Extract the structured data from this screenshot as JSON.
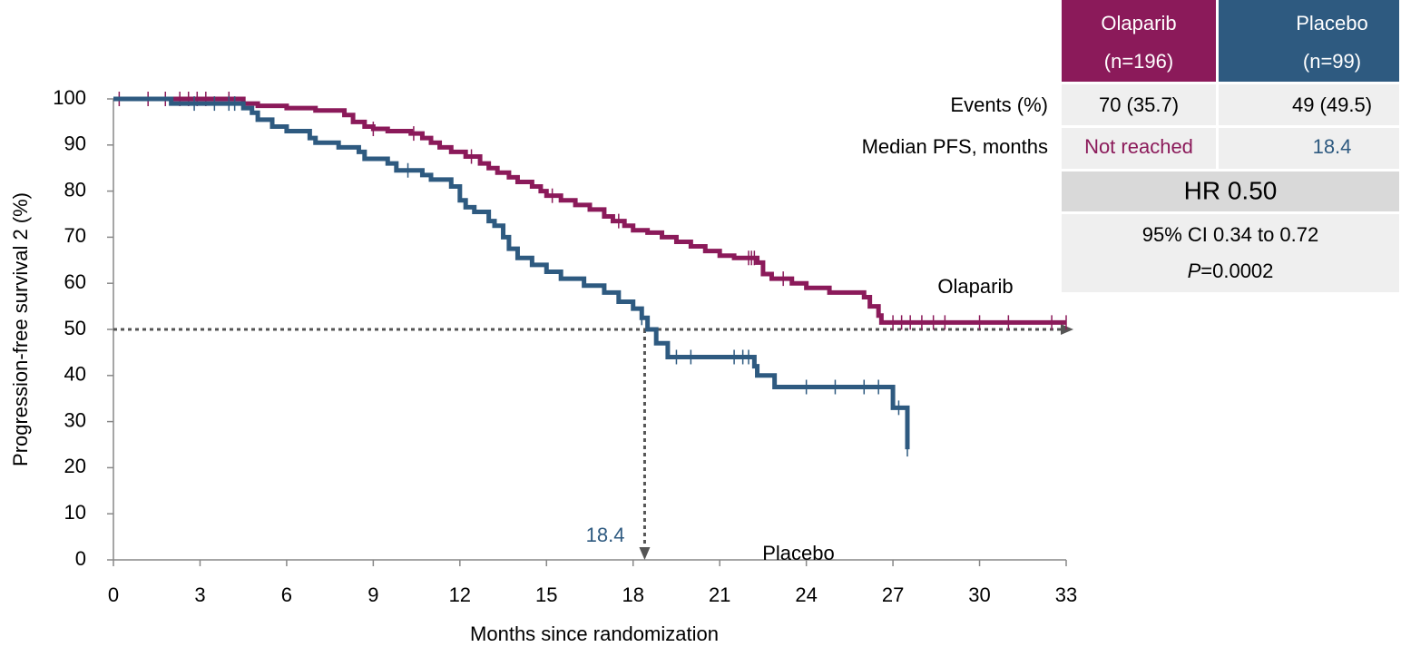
{
  "chart_data": {
    "type": "step",
    "xlabel": "Months since randomization",
    "ylabel": "Progression-free survival 2 (%)",
    "xlim": [
      0,
      33
    ],
    "xticks": [
      0,
      3,
      6,
      9,
      12,
      15,
      18,
      21,
      24,
      27,
      30,
      33
    ],
    "ylim": [
      0,
      100
    ],
    "yticks": [
      0,
      10,
      20,
      30,
      40,
      50,
      60,
      70,
      80,
      90,
      100
    ],
    "median_survival": 50,
    "median_time": 18.4,
    "series": [
      {
        "name": "Olaparib",
        "color": "#8b1a5a",
        "x": [
          0,
          4.5,
          5,
          6,
          7,
          8,
          8.3,
          8.7,
          9.0,
          9.5,
          10.3,
          10.7,
          11,
          11.3,
          11.7,
          12.2,
          12.7,
          13,
          13.3,
          13.7,
          14,
          14.5,
          14.8,
          15,
          15.5,
          16,
          16.5,
          17,
          17.3,
          17.7,
          18,
          18.5,
          19,
          19.5,
          20,
          20.5,
          21,
          21.5,
          22.3,
          22.5,
          22.8,
          23.5,
          24,
          24.8,
          26,
          26.2,
          26.5,
          26.6,
          33
        ],
        "values": [
          100,
          99,
          98.5,
          98,
          97.5,
          96.5,
          95,
          94,
          93.5,
          93,
          92.5,
          91.5,
          90.5,
          89.5,
          88.5,
          87.5,
          86,
          85,
          84,
          83,
          82,
          81,
          80,
          79,
          78,
          77,
          76,
          74.5,
          73.5,
          72.5,
          71.5,
          71,
          70,
          69,
          68,
          67,
          66,
          65.5,
          64.5,
          62,
          61,
          60,
          59,
          58,
          57,
          55,
          53,
          51.5,
          51.5
        ],
        "censored": [
          0.2,
          1.2,
          1.8,
          2.3,
          2.6,
          2.9,
          3.2,
          4.0,
          9.0,
          10.4,
          12.4,
          15.2,
          17.5,
          22.0,
          22.1,
          22.2,
          23.2,
          27.0,
          27.3,
          27.6,
          28.0,
          28.4,
          28.8,
          30.0,
          31.0,
          32.5,
          33.0
        ]
      },
      {
        "name": "Placebo",
        "color": "#2e5a80",
        "x": [
          0,
          2,
          4.5,
          4.8,
          5,
          5.5,
          6,
          6.8,
          7,
          7.8,
          8.5,
          8.7,
          9.5,
          9.8,
          10.7,
          11,
          11.7,
          12,
          12.2,
          12.5,
          13,
          13.2,
          13.5,
          13.7,
          14,
          14.5,
          15,
          15.5,
          16.3,
          17,
          17.5,
          18,
          18.3,
          18.5,
          18.8,
          19.2,
          22.2,
          22.3,
          22.9,
          27,
          27.5
        ],
        "values": [
          100,
          99,
          98,
          97,
          95.5,
          94,
          93,
          91.5,
          90.5,
          89.5,
          88.5,
          87,
          86,
          84.5,
          83.5,
          82.5,
          81,
          78,
          76.5,
          75.5,
          73.5,
          72.5,
          70,
          67.5,
          65.5,
          64,
          62.5,
          61,
          59.5,
          58,
          56,
          54.5,
          52.5,
          50,
          47,
          44,
          42,
          40,
          37.5,
          33,
          24
        ],
        "censored": [
          2.8,
          3.5,
          4.0,
          4.2,
          10.2,
          18.3,
          19.5,
          20.0,
          21.5,
          21.8,
          22.0,
          24.0,
          25.0,
          26.0,
          26.5,
          27.2,
          27.5
        ]
      }
    ]
  },
  "table": {
    "header": [
      [
        "Olaparib",
        "(n=196)"
      ],
      [
        "Placebo",
        "(n=99)"
      ]
    ],
    "rows": [
      {
        "label": "Events (%)",
        "cells": [
          "70 (35.7)",
          "49 (49.5)"
        ]
      },
      {
        "label": "Median PFS, months",
        "cells": [
          "Not reached",
          "18.4"
        ]
      }
    ],
    "hr": "HR 0.50",
    "ci": "95% CI 0.34 to 0.72",
    "p_italic": "P",
    "p_value": "=0.0002"
  }
}
